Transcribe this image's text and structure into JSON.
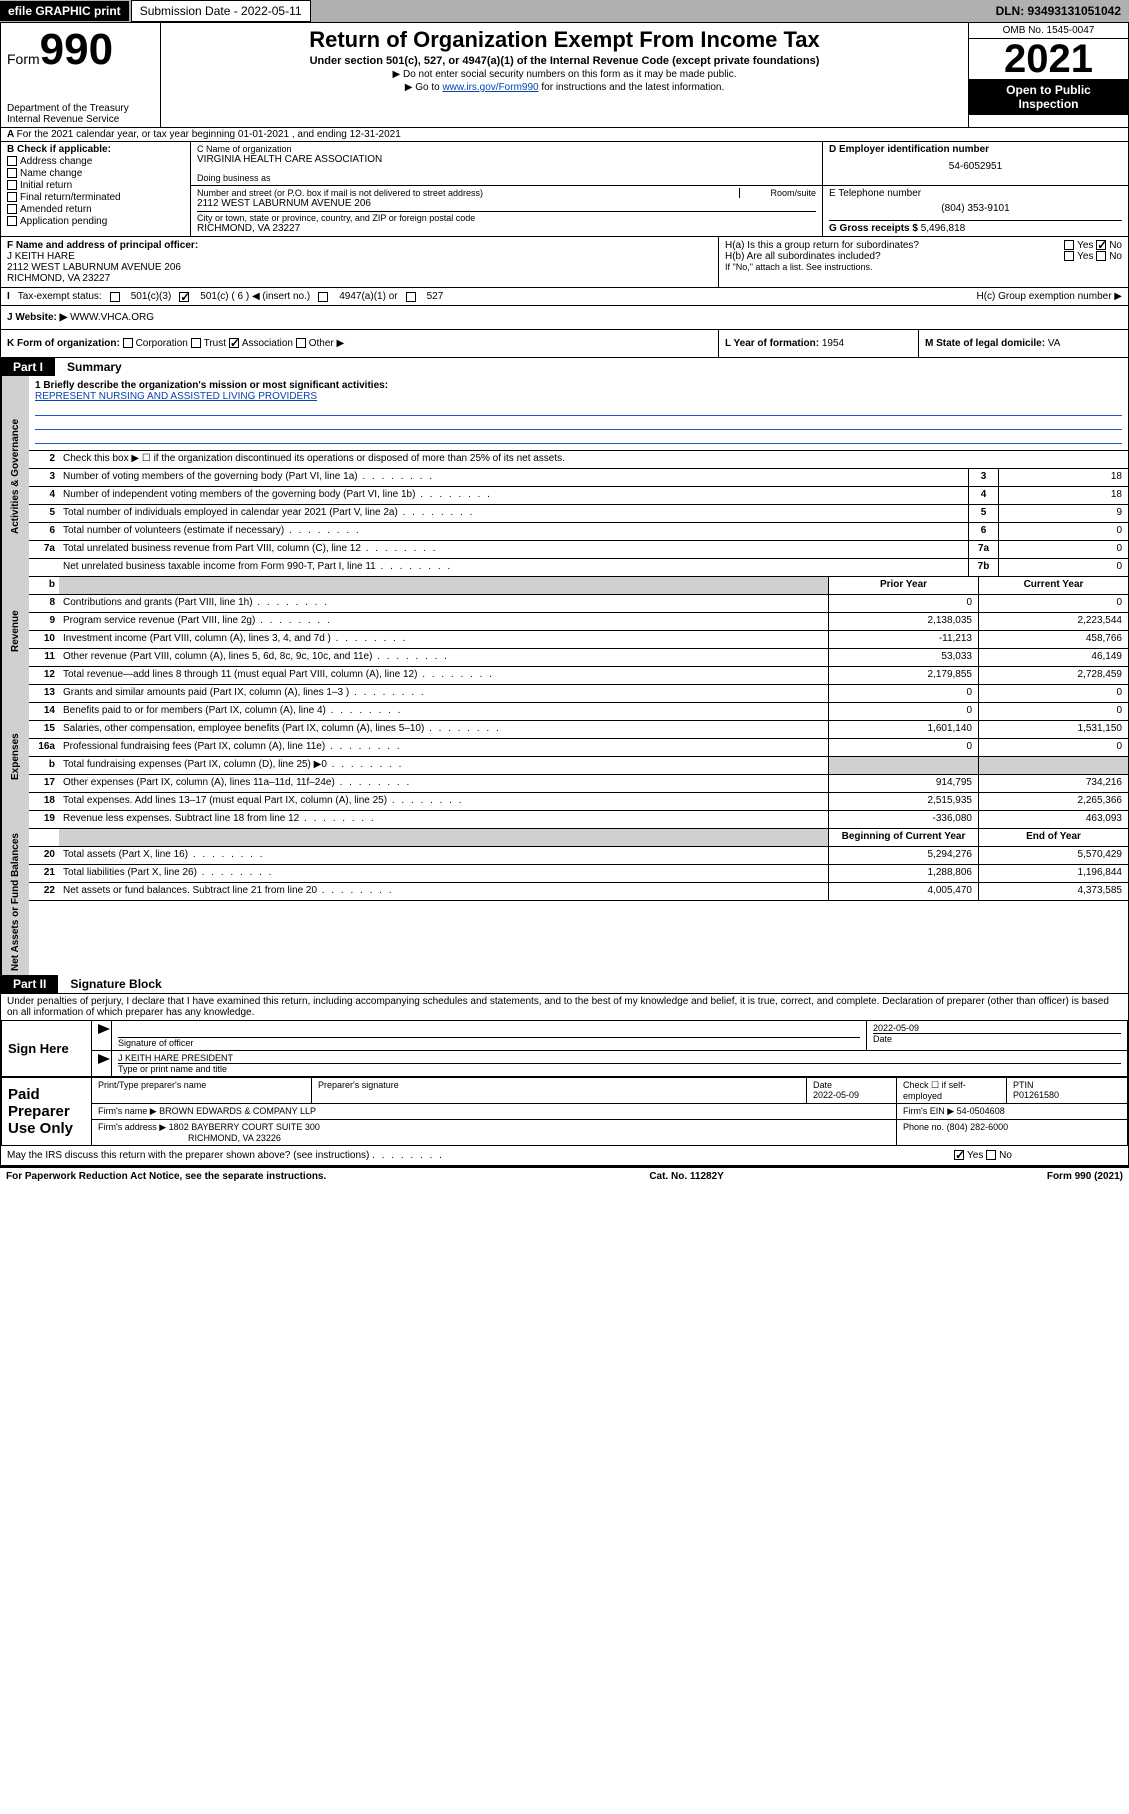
{
  "topbar": {
    "efile": "efile GRAPHIC print",
    "subLabel": "Submission Date - 2022-05-11",
    "dln": "DLN: 93493131051042"
  },
  "header": {
    "formWord": "Form",
    "formNum": "990",
    "title": "Return of Organization Exempt From Income Tax",
    "subtitle": "Under section 501(c), 527, or 4947(a)(1) of the Internal Revenue Code (except private foundations)",
    "note1": "▶ Do not enter social security numbers on this form as it may be made public.",
    "note2pre": "▶ Go to ",
    "note2link": "www.irs.gov/Form990",
    "note2post": " for instructions and the latest information.",
    "dept": "Department of the Treasury",
    "irs": "Internal Revenue Service",
    "omb": "OMB No. 1545-0047",
    "year": "2021",
    "inspect1": "Open to Public",
    "inspect2": "Inspection"
  },
  "A": {
    "text": "For the 2021 calendar year, or tax year beginning 01-01-2021    , and ending 12-31-2021"
  },
  "B": {
    "label": "B Check if applicable:",
    "items": [
      "Address change",
      "Name change",
      "Initial return",
      "Final return/terminated",
      "Amended return",
      "Application pending"
    ]
  },
  "C": {
    "nameLabel": "C Name of organization",
    "name": "VIRGINIA HEALTH CARE ASSOCIATION",
    "dbaLabel": "Doing business as",
    "dba": "",
    "addrLabel": "Number and street (or P.O. box if mail is not delivered to street address)",
    "roomLabel": "Room/suite",
    "addr": "2112 WEST LABURNUM AVENUE 206",
    "cityLabel": "City or town, state or province, country, and ZIP or foreign postal code",
    "city": "RICHMOND, VA  23227"
  },
  "D": {
    "label": "D Employer identification number",
    "val": "54-6052951"
  },
  "E": {
    "label": "E Telephone number",
    "val": "(804) 353-9101"
  },
  "G": {
    "label": "G Gross receipts $",
    "val": "5,496,818"
  },
  "F": {
    "label": "F  Name and address of principal officer:",
    "name": "J KEITH HARE",
    "addr1": "2112 WEST LABURNUM AVENUE 206",
    "addr2": "RICHMOND, VA  23227"
  },
  "H": {
    "a": "H(a)  Is this a group return for subordinates?",
    "ayes": "Yes",
    "ano": "No",
    "b": "H(b)  Are all subordinates included?",
    "bnote": "If \"No,\" attach a list. See instructions.",
    "c": "H(c)  Group exemption number ▶"
  },
  "I": {
    "label": "Tax-exempt status:",
    "o1": "501(c)(3)",
    "o2": "501(c) ( 6 ) ◀ (insert no.)",
    "o3": "4947(a)(1) or",
    "o4": "527"
  },
  "J": {
    "label": "Website: ▶",
    "val": "WWW.VHCA.ORG"
  },
  "K": {
    "label": "K Form of organization:",
    "o1": "Corporation",
    "o2": "Trust",
    "o3": "Association",
    "o4": "Other ▶"
  },
  "L": {
    "label": "L Year of formation:",
    "val": "1954"
  },
  "M": {
    "label": "M State of legal domicile:",
    "val": "VA"
  },
  "part1": {
    "num": "Part I",
    "title": "Summary"
  },
  "mission": {
    "label": "1  Briefly describe the organization's mission or most significant activities:",
    "text": "REPRESENT NURSING AND ASSISTED LIVING PROVIDERS"
  },
  "line2": "Check this box ▶ ☐  if the organization discontinued its operations or disposed of more than 25% of its net assets.",
  "govLines": [
    {
      "n": "3",
      "d": "Number of voting members of the governing body (Part VI, line 1a)",
      "b": "3",
      "v": "18"
    },
    {
      "n": "4",
      "d": "Number of independent voting members of the governing body (Part VI, line 1b)",
      "b": "4",
      "v": "18"
    },
    {
      "n": "5",
      "d": "Total number of individuals employed in calendar year 2021 (Part V, line 2a)",
      "b": "5",
      "v": "9"
    },
    {
      "n": "6",
      "d": "Total number of volunteers (estimate if necessary)",
      "b": "6",
      "v": "0"
    },
    {
      "n": "7a",
      "d": "Total unrelated business revenue from Part VIII, column (C), line 12",
      "b": "7a",
      "v": "0"
    },
    {
      "n": "",
      "d": "Net unrelated business taxable income from Form 990-T, Part I, line 11",
      "b": "7b",
      "v": "0"
    }
  ],
  "pycy": {
    "b": "b",
    "py": "Prior Year",
    "cy": "Current Year"
  },
  "revLines": [
    {
      "n": "8",
      "d": "Contributions and grants (Part VIII, line 1h)",
      "p": "0",
      "c": "0"
    },
    {
      "n": "9",
      "d": "Program service revenue (Part VIII, line 2g)",
      "p": "2,138,035",
      "c": "2,223,544"
    },
    {
      "n": "10",
      "d": "Investment income (Part VIII, column (A), lines 3, 4, and 7d )",
      "p": "-11,213",
      "c": "458,766"
    },
    {
      "n": "11",
      "d": "Other revenue (Part VIII, column (A), lines 5, 6d, 8c, 9c, 10c, and 11e)",
      "p": "53,033",
      "c": "46,149"
    },
    {
      "n": "12",
      "d": "Total revenue—add lines 8 through 11 (must equal Part VIII, column (A), line 12)",
      "p": "2,179,855",
      "c": "2,728,459"
    }
  ],
  "expLines": [
    {
      "n": "13",
      "d": "Grants and similar amounts paid (Part IX, column (A), lines 1–3 )",
      "p": "0",
      "c": "0"
    },
    {
      "n": "14",
      "d": "Benefits paid to or for members (Part IX, column (A), line 4)",
      "p": "0",
      "c": "0"
    },
    {
      "n": "15",
      "d": "Salaries, other compensation, employee benefits (Part IX, column (A), lines 5–10)",
      "p": "1,601,140",
      "c": "1,531,150"
    },
    {
      "n": "16a",
      "d": "Professional fundraising fees (Part IX, column (A), line 11e)",
      "p": "0",
      "c": "0"
    },
    {
      "n": "b",
      "d": "Total fundraising expenses (Part IX, column (D), line 25) ▶0",
      "p": "",
      "c": "",
      "grey": true
    },
    {
      "n": "17",
      "d": "Other expenses (Part IX, column (A), lines 11a–11d, 11f–24e)",
      "p": "914,795",
      "c": "734,216"
    },
    {
      "n": "18",
      "d": "Total expenses. Add lines 13–17 (must equal Part IX, column (A), line 25)",
      "p": "2,515,935",
      "c": "2,265,366"
    },
    {
      "n": "19",
      "d": "Revenue less expenses. Subtract line 18 from line 12",
      "p": "-336,080",
      "c": "463,093"
    }
  ],
  "nacy": {
    "py": "Beginning of Current Year",
    "cy": "End of Year"
  },
  "naLines": [
    {
      "n": "20",
      "d": "Total assets (Part X, line 16)",
      "p": "5,294,276",
      "c": "5,570,429"
    },
    {
      "n": "21",
      "d": "Total liabilities (Part X, line 26)",
      "p": "1,288,806",
      "c": "1,196,844"
    },
    {
      "n": "22",
      "d": "Net assets or fund balances. Subtract line 21 from line 20",
      "p": "4,005,470",
      "c": "4,373,585"
    }
  ],
  "part2": {
    "num": "Part II",
    "title": "Signature Block"
  },
  "sigDecl": "Under penalties of perjury, I declare that I have examined this return, including accompanying schedules and statements, and to the best of my knowledge and belief, it is true, correct, and complete. Declaration of preparer (other than officer) is based on all information of which preparer has any knowledge.",
  "sign": {
    "here": "Sign Here",
    "sigOfficer": "Signature of officer",
    "date": "2022-05-09",
    "dateLabel": "Date",
    "name": "J KEITH HARE  PRESIDENT",
    "nameLabel": "Type or print name and title"
  },
  "paid": {
    "label": "Paid Preparer Use Only",
    "h1": "Print/Type preparer's name",
    "h2": "Preparer's signature",
    "h3": "Date",
    "h3v": "2022-05-09",
    "h4": "Check ☐ if self-employed",
    "h5": "PTIN",
    "h5v": "P01261580",
    "firmNameL": "Firm's name    ▶",
    "firmName": "BROWN EDWARDS & COMPANY LLP",
    "firmEinL": "Firm's EIN ▶",
    "firmEin": "54-0504608",
    "firmAddrL": "Firm's address ▶",
    "firmAddr1": "1802 BAYBERRY COURT SUITE 300",
    "firmAddr2": "RICHMOND, VA  23226",
    "phoneL": "Phone no.",
    "phone": "(804) 282-6000"
  },
  "discuss": {
    "text": "May the IRS discuss this return with the preparer shown above? (see instructions)",
    "yes": "Yes",
    "no": "No"
  },
  "footer": {
    "l": "For Paperwork Reduction Act Notice, see the separate instructions.",
    "c": "Cat. No. 11282Y",
    "r": "Form 990 (2021)"
  },
  "sideLabels": {
    "gov": "Activities & Governance",
    "rev": "Revenue",
    "exp": "Expenses",
    "na": "Net Assets or Fund Balances"
  }
}
